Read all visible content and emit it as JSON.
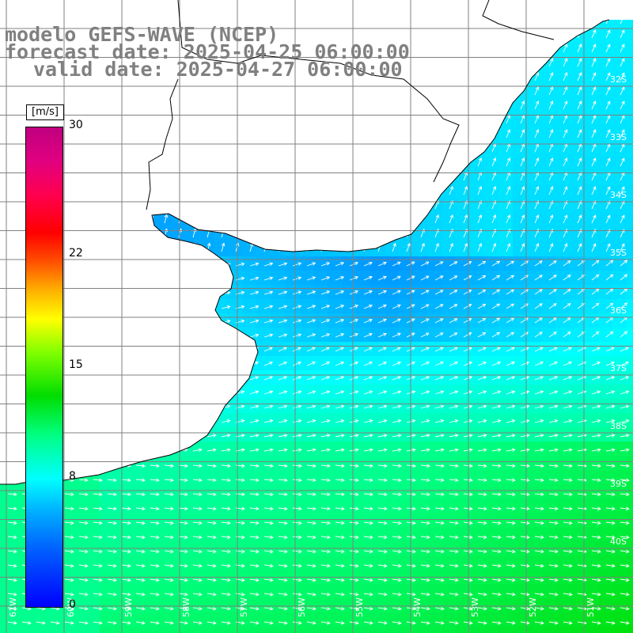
{
  "title": {
    "model": "modelo GEFS-WAVE (NCEP)",
    "forecast": "forecast date: 2025-04-25 06:00:00",
    "valid": "valid date: 2025-04-27 06:00:00"
  },
  "colorbar": {
    "unit": "[m/s]",
    "ticks": [
      {
        "label": "30",
        "value": 30
      },
      {
        "label": "22",
        "value": 22
      },
      {
        "label": "15",
        "value": 15
      },
      {
        "label": "8",
        "value": 8
      },
      {
        "label": "0",
        "value": 0
      }
    ],
    "range": [
      0,
      30
    ]
  },
  "map": {
    "field": "wind speed",
    "lat_labels": [
      "32S",
      "33S",
      "34S",
      "35S",
      "36S",
      "37S",
      "38S",
      "39S",
      "40S"
    ],
    "lon_labels": [
      "61W",
      "60W",
      "59W",
      "58W",
      "57W",
      "56W",
      "55W",
      "54W",
      "53W",
      "52W",
      "51W"
    ],
    "land_color": "#ffffff",
    "grid_color": "#808080"
  }
}
